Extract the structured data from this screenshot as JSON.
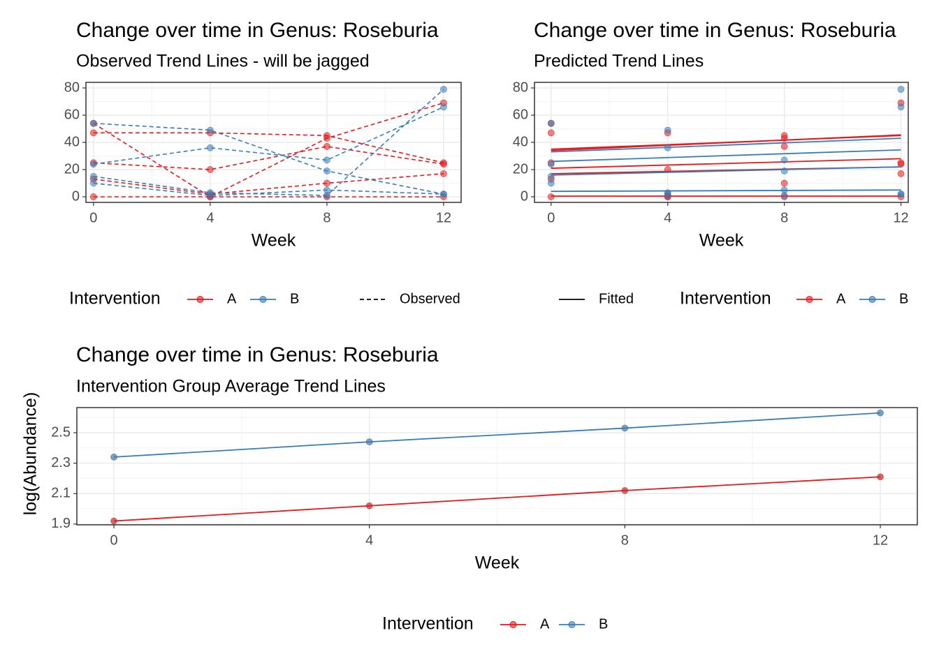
{
  "chart_data": [
    {
      "type": "line",
      "title": "Change over time in Genus: Roseburia",
      "subtitle": "Observed Trend Lines - will be jagged",
      "xlabel": "Week",
      "x": [
        0,
        4,
        8,
        12
      ],
      "groups": [
        {
          "name": "A",
          "color": "#E41A1C",
          "lines": [
            [
              54,
              0,
              43,
              69
            ],
            [
              47,
              47,
              45,
              25
            ],
            [
              25,
              20,
              37,
              24
            ],
            [
              13,
              2,
              10,
              17
            ],
            [
              0,
              0,
              0,
              0
            ]
          ]
        },
        {
          "name": "B",
          "color": "#377EB8",
          "lines": [
            [
              54,
              49,
              19,
              2
            ],
            [
              24,
              36,
              27,
              66
            ],
            [
              10,
              1,
              5,
              2
            ],
            [
              15,
              3,
              1,
              79
            ]
          ]
        }
      ],
      "linestyle": "dashed",
      "linestyle_label": "Observed",
      "legend_title": "Intervention",
      "legend": "bottom",
      "xlim": [
        -0.26,
        12.6
      ],
      "ylim": [
        -4.1,
        84.1
      ],
      "xticks": [
        0,
        4,
        8,
        12
      ],
      "yticks": [
        0,
        20,
        40,
        60,
        80
      ],
      "minor_xticks": [
        2,
        6,
        10
      ],
      "minor_yticks": [
        10,
        30,
        50,
        70
      ],
      "grid": true
    },
    {
      "type": "line",
      "title": "Change over time in Genus: Roseburia",
      "subtitle": "Predicted Trend Lines",
      "xlabel": "Week",
      "x": [
        0,
        4,
        8,
        12
      ],
      "fit_x": [
        0,
        12
      ],
      "groups": [
        {
          "name": "A",
          "color": "#E41A1C",
          "lines": [
            [
              54,
              0,
              43,
              69
            ],
            [
              47,
              47,
              45,
              25
            ],
            [
              25,
              20,
              37,
              24
            ],
            [
              13,
              2,
              10,
              17
            ],
            [
              0,
              0,
              0,
              0
            ]
          ],
          "fitted": [
            [
              34,
              45.5
            ],
            [
              35,
              45
            ],
            [
              21,
              28
            ],
            [
              17,
              22
            ],
            [
              0.5,
              0.5
            ]
          ]
        },
        {
          "name": "B",
          "color": "#377EB8",
          "lines": [
            [
              54,
              49,
              19,
              2
            ],
            [
              24,
              36,
              27,
              66
            ],
            [
              10,
              1,
              5,
              2
            ],
            [
              15,
              3,
              1,
              79
            ]
          ],
          "fitted": [
            [
              33,
              43
            ],
            [
              26,
              34.5
            ],
            [
              16,
              22
            ],
            [
              4,
              5
            ]
          ]
        }
      ],
      "linestyle": "solid",
      "linestyle_label": "Fitted",
      "legend_title": "Intervention",
      "legend": "bottom",
      "xlim": [
        -0.57,
        12.25
      ],
      "ylim": [
        -4.1,
        84.1
      ],
      "xticks": [
        0,
        4,
        8,
        12
      ],
      "yticks": [
        0,
        20,
        40,
        60,
        80
      ],
      "minor_xticks": [
        2,
        6,
        10
      ],
      "minor_yticks": [
        10,
        30,
        50,
        70
      ],
      "grid": true
    },
    {
      "type": "line",
      "title": "Change over time in Genus: Roseburia",
      "subtitle": "Intervention Group Average Trend Lines",
      "xlabel": "Week",
      "ylabel": "log(Abundance)",
      "x": [
        0,
        4,
        8,
        12
      ],
      "series": [
        {
          "name": "A",
          "color": "#E41A1C",
          "values": [
            1.92,
            2.02,
            2.12,
            2.21
          ]
        },
        {
          "name": "B",
          "color": "#377EB8",
          "values": [
            2.34,
            2.44,
            2.53,
            2.63
          ]
        }
      ],
      "legend_title": "Intervention",
      "legend": "bottom",
      "xlim": [
        -0.58,
        12.58
      ],
      "ylim": [
        1.895,
        2.665
      ],
      "xticks": [
        0,
        4,
        8,
        12
      ],
      "yticks": [
        1.9,
        2.1,
        2.3,
        2.5
      ],
      "minor_xticks": [
        2,
        6,
        10
      ],
      "minor_yticks": [
        2.0,
        2.2,
        2.4,
        2.6
      ],
      "grid": true
    }
  ]
}
